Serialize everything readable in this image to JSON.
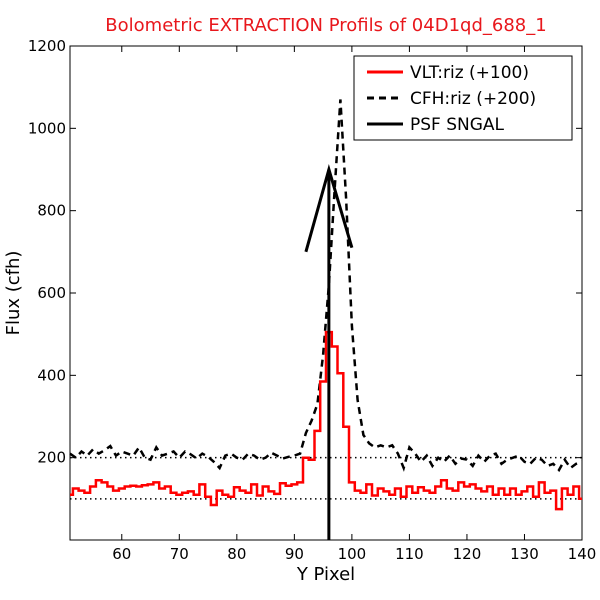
{
  "chart_data": {
    "type": "line",
    "title": "Bolometric EXTRACTION Profils of 04D1qd_688_1",
    "xlabel": "Y Pixel",
    "ylabel": "Flux (cfh)",
    "xlim": [
      51,
      140
    ],
    "ylim": [
      0,
      1200
    ],
    "xticks": [
      60,
      70,
      80,
      90,
      100,
      110,
      120,
      130,
      140
    ],
    "yticks": [
      200,
      400,
      600,
      800,
      1000,
      1200
    ],
    "legend_position": "top-right",
    "grid": false,
    "reference_lines": [
      100,
      200
    ],
    "series": [
      {
        "name": "VLT:riz (+100)",
        "style": "steps-solid",
        "color": "#ff0000",
        "x": [
          51,
          52,
          53,
          54,
          55,
          56,
          57,
          58,
          59,
          60,
          61,
          62,
          63,
          64,
          65,
          66,
          67,
          68,
          69,
          70,
          71,
          72,
          73,
          74,
          75,
          76,
          77,
          78,
          79,
          80,
          81,
          82,
          83,
          84,
          85,
          86,
          87,
          88,
          89,
          90,
          91,
          92,
          93,
          94,
          95,
          96,
          97,
          98,
          99,
          100,
          101,
          102,
          103,
          104,
          105,
          106,
          107,
          108,
          109,
          110,
          111,
          112,
          113,
          114,
          115,
          116,
          117,
          118,
          119,
          120,
          121,
          122,
          123,
          124,
          125,
          126,
          127,
          128,
          129,
          130,
          131,
          132,
          133,
          134,
          135,
          136,
          137,
          138,
          139,
          140
        ],
        "values": [
          110,
          125,
          120,
          115,
          130,
          145,
          140,
          130,
          120,
          125,
          130,
          132,
          130,
          133,
          135,
          140,
          125,
          130,
          115,
          110,
          115,
          118,
          110,
          135,
          105,
          85,
          120,
          110,
          105,
          128,
          120,
          115,
          135,
          108,
          130,
          118,
          112,
          138,
          132,
          135,
          140,
          200,
          195,
          265,
          385,
          505,
          470,
          405,
          275,
          140,
          120,
          115,
          135,
          108,
          125,
          118,
          110,
          125,
          105,
          130,
          115,
          128,
          120,
          115,
          130,
          145,
          125,
          120,
          140,
          130,
          135,
          125,
          118,
          130,
          110,
          125,
          110,
          125,
          110,
          118,
          130,
          105,
          140,
          115,
          120,
          75,
          125,
          110,
          130,
          100
        ]
      },
      {
        "name": "CFH:riz (+200)",
        "style": "dashed",
        "color": "#000000",
        "x": [
          51,
          52,
          53,
          54,
          55,
          56,
          57,
          58,
          59,
          60,
          61,
          62,
          63,
          64,
          65,
          66,
          67,
          68,
          69,
          70,
          71,
          72,
          73,
          74,
          75,
          76,
          77,
          78,
          79,
          80,
          81,
          82,
          83,
          84,
          85,
          86,
          87,
          88,
          89,
          90,
          91,
          92,
          93,
          94,
          95,
          96,
          97,
          98,
          99,
          100,
          101,
          102,
          103,
          104,
          105,
          106,
          107,
          108,
          109,
          110,
          111,
          112,
          113,
          114,
          115,
          116,
          117,
          118,
          119,
          120,
          121,
          122,
          123,
          124,
          125,
          126,
          127,
          128,
          129,
          130,
          131,
          132,
          133,
          134,
          135,
          136,
          137,
          138,
          139,
          140
        ],
        "values": [
          210,
          200,
          215,
          205,
          220,
          210,
          218,
          228,
          205,
          215,
          210,
          205,
          225,
          200,
          195,
          225,
          205,
          210,
          215,
          200,
          215,
          208,
          198,
          210,
          202,
          190,
          175,
          205,
          210,
          200,
          195,
          210,
          205,
          195,
          200,
          212,
          205,
          198,
          202,
          205,
          210,
          260,
          290,
          330,
          450,
          620,
          850,
          1070,
          830,
          520,
          340,
          255,
          235,
          225,
          230,
          225,
          230,
          210,
          175,
          225,
          210,
          190,
          205,
          180,
          200,
          190,
          205,
          185,
          198,
          195,
          180,
          205,
          190,
          205,
          210,
          185,
          195,
          200,
          205,
          190,
          185,
          200,
          195,
          180,
          185,
          170,
          195,
          175,
          185,
          190
        ]
      }
    ],
    "psf_model": {
      "name": "PSF SNGAL",
      "color": "#000000",
      "vertical_line_x": 96,
      "x": [
        92,
        96,
        100
      ],
      "values": [
        700,
        900,
        710
      ]
    }
  }
}
